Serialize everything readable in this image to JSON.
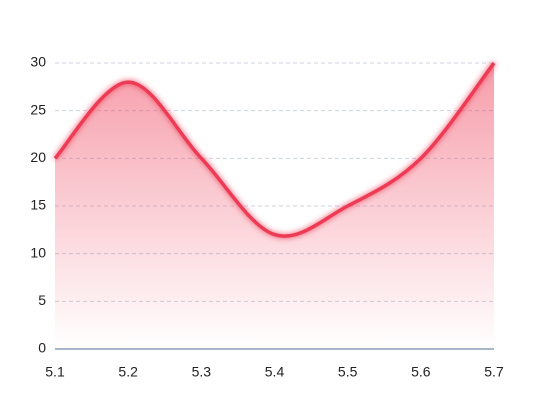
{
  "chart_data": {
    "type": "area",
    "categories": [
      "5.1",
      "5.2",
      "5.3",
      "5.4",
      "5.5",
      "5.6",
      "5.7"
    ],
    "values": [
      20,
      28,
      20,
      12,
      15,
      20,
      30
    ],
    "color": "#ee3b55",
    "ylim": [
      0,
      30
    ],
    "yticks": [
      0,
      5,
      10,
      15,
      20,
      25,
      30
    ],
    "grid": true,
    "smooth": true
  }
}
